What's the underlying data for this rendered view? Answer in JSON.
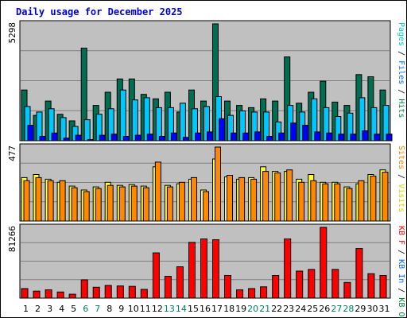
{
  "chart_data": {
    "type": "bar",
    "title": "Daily usage for December 2025",
    "x": [
      "1",
      "2",
      "3",
      "4",
      "5",
      "6",
      "7",
      "8",
      "9",
      "10",
      "11",
      "12",
      "13",
      "14",
      "15",
      "16",
      "17",
      "18",
      "19",
      "20",
      "21",
      "22",
      "23",
      "24",
      "25",
      "26",
      "27",
      "28",
      "29",
      "30",
      "31"
    ],
    "weekend_days": [
      "6",
      "7",
      "13",
      "14",
      "20",
      "21",
      "27",
      "28"
    ],
    "panels": [
      {
        "id": "hits",
        "ytick": "5298",
        "ymax": 5298,
        "right_label": [
          {
            "text": "Pages",
            "color": "#00c8c8"
          },
          {
            "text": " / ",
            "color": "#000000"
          },
          {
            "text": "Files",
            "color": "#0066ff"
          },
          {
            "text": " / ",
            "color": "#000000"
          },
          {
            "text": "Hits",
            "color": "#008040"
          }
        ],
        "series": [
          {
            "name": "Hits",
            "color": "#006e50",
            "values": [
              2300,
              1150,
              1800,
              1200,
              900,
              4200,
              1600,
              2200,
              2800,
              2800,
              2100,
              1900,
              2200,
              1300,
              2300,
              1800,
              5298,
              1800,
              1600,
              1500,
              1900,
              1800,
              3800,
              1700,
              2200,
              2700,
              1750,
              1600,
              3000,
              2900,
              2300
            ]
          },
          {
            "name": "Files",
            "color": "#00c8ff",
            "values": [
              1550,
              1300,
              1450,
              1050,
              650,
              950,
              1200,
              1450,
              2300,
              1850,
              1950,
              1500,
              1500,
              1700,
              1450,
              1550,
              2000,
              1150,
              1350,
              1300,
              1300,
              850,
              1600,
              1300,
              1900,
              1500,
              1100,
              1250,
              1950,
              1500,
              1600
            ]
          },
          {
            "name": "Pages",
            "color": "#0000ff",
            "values": [
              700,
              200,
              350,
              120,
              250,
              50,
              250,
              300,
              200,
              250,
              300,
              200,
              350,
              150,
              350,
              400,
              1000,
              350,
              350,
              400,
              200,
              350,
              800,
              700,
              400,
              350,
              300,
              300,
              450,
              300,
              300
            ]
          }
        ]
      },
      {
        "id": "visits",
        "ytick": "477",
        "ymax": 477,
        "right_label": [
          {
            "text": "Sites",
            "color": "#ff8000"
          },
          {
            "text": " / ",
            "color": "#000000"
          },
          {
            "text": "Visits",
            "color": "#d4d400"
          }
        ],
        "series": [
          {
            "name": "Visits",
            "color": "#ffff40",
            "values": [
              280,
              300,
              270,
              250,
              225,
              200,
              220,
              250,
              230,
              235,
              225,
              350,
              230,
              240,
              270,
              200,
              400,
              285,
              270,
              280,
              350,
              320,
              320,
              270,
              300,
              250,
              250,
              220,
              240,
              300,
              330
            ]
          },
          {
            "name": "Sites",
            "color": "#ff8800",
            "values": [
              260,
              280,
              260,
              260,
              215,
              190,
              210,
              230,
              220,
              225,
              215,
              380,
              220,
              250,
              280,
              190,
              477,
              295,
              280,
              270,
              320,
              310,
              330,
              250,
              260,
              240,
              240,
              210,
              260,
              290,
              315
            ]
          }
        ]
      },
      {
        "id": "kbytes",
        "ytick": "81266",
        "ymax": 81266,
        "right_label": [
          {
            "text": "KB F",
            "color": "#ff0000"
          },
          {
            "text": " / ",
            "color": "#000000"
          },
          {
            "text": "KB In",
            "color": "#0066ff"
          },
          {
            "text": " / ",
            "color": "#000000"
          },
          {
            "text": "KB Out",
            "color": "#008040"
          }
        ],
        "series": [
          {
            "name": "KB F",
            "color": "#ff0000",
            "values": [
              11000,
              8000,
              9500,
              7000,
              4500,
              21000,
              12500,
              14500,
              14000,
              13500,
              10000,
              52000,
              25000,
              36000,
              64000,
              68000,
              67000,
              26000,
              9500,
              11000,
              13000,
              26000,
              68000,
              31000,
              33000,
              81266,
              33000,
              18000,
              57000,
              28000,
              26000
            ]
          }
        ]
      }
    ]
  }
}
